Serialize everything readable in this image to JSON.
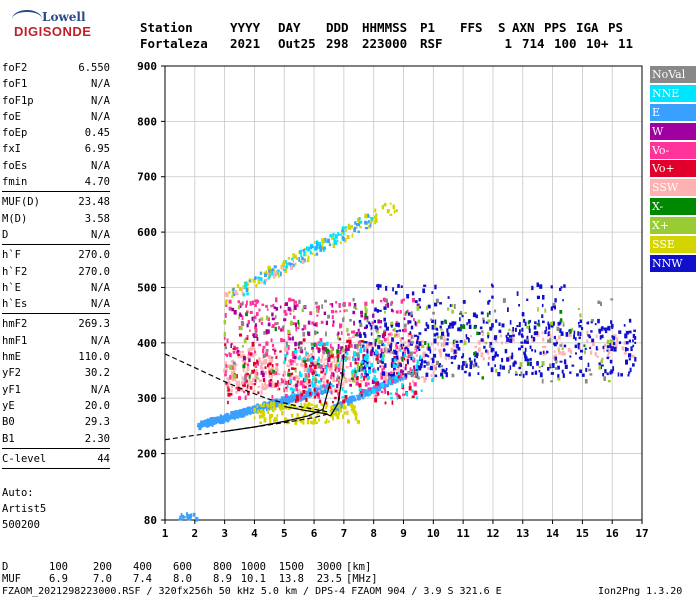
{
  "logo": {
    "line1": "Lowell",
    "line2": "DIGISONDE"
  },
  "header": {
    "labels": [
      "Station",
      "YYYY",
      "DAY",
      "DDD",
      "HHMMSS",
      "P1",
      "FFS",
      "S",
      "AXN",
      "PPS",
      "IGA",
      "PS"
    ],
    "values": [
      "Fortaleza",
      "2021",
      "Out25",
      "298",
      "223000",
      "RSF",
      "1",
      "714",
      "100",
      "10+",
      "11"
    ]
  },
  "params": {
    "group1": [
      {
        "k": "foF2",
        "v": "6.550"
      },
      {
        "k": "foF1",
        "v": "N/A"
      },
      {
        "k": "foF1p",
        "v": "N/A"
      },
      {
        "k": "foE",
        "v": "N/A"
      },
      {
        "k": "foEp",
        "v": "0.45"
      },
      {
        "k": "fxI",
        "v": "6.95"
      },
      {
        "k": "foEs",
        "v": "N/A"
      },
      {
        "k": "fmin",
        "v": "4.70"
      }
    ],
    "group2": [
      {
        "k": "MUF(D)",
        "v": "23.48"
      },
      {
        "k": "M(D)",
        "v": "3.58"
      },
      {
        "k": "D",
        "v": "N/A"
      }
    ],
    "group3": [
      {
        "k": "h`F",
        "v": "270.0"
      },
      {
        "k": "h`F2",
        "v": "270.0"
      },
      {
        "k": "h`E",
        "v": "N/A"
      },
      {
        "k": "h`Es",
        "v": "N/A"
      }
    ],
    "group4": [
      {
        "k": "hmF2",
        "v": "269.3"
      },
      {
        "k": "hmF1",
        "v": "N/A"
      },
      {
        "k": "hmE",
        "v": "110.0"
      },
      {
        "k": "yF2",
        "v": "30.2"
      },
      {
        "k": "yF1",
        "v": "N/A"
      },
      {
        "k": "yE",
        "v": "20.0"
      },
      {
        "k": "B0",
        "v": "29.3"
      },
      {
        "k": "B1",
        "v": "2.30"
      }
    ],
    "group5": [
      {
        "k": "C-level",
        "v": "44"
      }
    ]
  },
  "auto": {
    "line1": "Auto:",
    "line2": "Artist5",
    "line3": "500200"
  },
  "legend": [
    {
      "label": "NoVal",
      "color": "#888888"
    },
    {
      "label": "NNE",
      "color": "#00e5ff"
    },
    {
      "label": "E",
      "color": "#3aa0ff"
    },
    {
      "label": "W",
      "color": "#a000a0"
    },
    {
      "label": "Vo-",
      "color": "#ff3399"
    },
    {
      "label": "Vo+",
      "color": "#e0002a"
    },
    {
      "label": "SSW",
      "color": "#ffb0b0"
    },
    {
      "label": "X-",
      "color": "#008800"
    },
    {
      "label": "X+",
      "color": "#99cc33"
    },
    {
      "label": "SSE",
      "color": "#d4d400"
    },
    {
      "label": "NNW",
      "color": "#1010cc"
    }
  ],
  "bottom": {
    "d_label": "D",
    "d_values": [
      "100",
      "200",
      "400",
      "600",
      "800",
      "1000",
      "1500",
      "3000"
    ],
    "d_unit": "[km]",
    "muf_label": "MUF",
    "muf_values": [
      "6.9",
      "7.0",
      "7.4",
      "8.0",
      "8.9",
      "10.1",
      "13.8",
      "23.5"
    ],
    "muf_unit": "[MHz]"
  },
  "footer": {
    "text": "FZAOM_2021298223000.RSF / 320fx256h 50 kHz 5.0 km / DPS-4 FZAOM 904 / 3.9 S 321.6 E",
    "version": "Ion2Png 1.3.20"
  },
  "chart_data": {
    "type": "scatter",
    "xlabel": "",
    "ylabel": "",
    "xlim": [
      1,
      17
    ],
    "ylim": [
      80,
      900
    ],
    "x_ticks": [
      1,
      2,
      3,
      4,
      5,
      6,
      7,
      8,
      9,
      10,
      11,
      12,
      13,
      14,
      15,
      16,
      17
    ],
    "y_ticks": [
      80,
      200,
      300,
      400,
      500,
      600,
      700,
      800,
      900
    ],
    "grid": true,
    "legend_position": "right",
    "clusters": [
      {
        "name": "E",
        "xmin": 2.1,
        "xmax": 6.6,
        "ymin": 250,
        "ymax": 320,
        "n": 520,
        "tilt": 0.9
      },
      {
        "name": "E",
        "xmin": 6.6,
        "xmax": 9.0,
        "ymin": 280,
        "ymax": 340,
        "n": 180,
        "tilt": 0.6
      },
      {
        "name": "E",
        "xmin": 1.5,
        "xmax": 2.1,
        "ymin": 80,
        "ymax": 92,
        "n": 18,
        "tilt": 0
      },
      {
        "name": "SSE",
        "xmin": 4.0,
        "xmax": 7.5,
        "ymin": 255,
        "ymax": 290,
        "n": 150,
        "tilt": 0
      },
      {
        "name": "SSW",
        "xmin": 3.0,
        "xmax": 7.0,
        "ymin": 310,
        "ymax": 390,
        "n": 260,
        "tilt": 0
      },
      {
        "name": "SSW",
        "xmin": 7.0,
        "xmax": 10.5,
        "ymin": 330,
        "ymax": 420,
        "n": 120,
        "tilt": 0
      },
      {
        "name": "SSW",
        "xmin": 10.5,
        "xmax": 16.8,
        "ymin": 370,
        "ymax": 420,
        "n": 90,
        "tilt": 0
      },
      {
        "name": "Vo-",
        "xmin": 3.0,
        "xmax": 9.5,
        "ymin": 300,
        "ymax": 480,
        "n": 300,
        "tilt": 0
      },
      {
        "name": "Vo+",
        "xmin": 3.0,
        "xmax": 9.5,
        "ymin": 290,
        "ymax": 420,
        "n": 160,
        "tilt": 0
      },
      {
        "name": "W",
        "xmin": 3.2,
        "xmax": 9.5,
        "ymin": 320,
        "ymax": 470,
        "n": 120,
        "tilt": 0
      },
      {
        "name": "NNW",
        "xmin": 7.5,
        "xmax": 16.8,
        "ymin": 340,
        "ymax": 440,
        "n": 420,
        "tilt": 0
      },
      {
        "name": "NNW",
        "xmin": 8.0,
        "xmax": 14.5,
        "ymin": 430,
        "ymax": 510,
        "n": 80,
        "tilt": 0
      },
      {
        "name": "NNE",
        "xmin": 5.0,
        "xmax": 10.0,
        "ymin": 300,
        "ymax": 400,
        "n": 120,
        "tilt": 0
      },
      {
        "name": "X+",
        "xmin": 3.0,
        "xmax": 16.0,
        "ymin": 330,
        "ymax": 470,
        "n": 90,
        "tilt": 0
      },
      {
        "name": "X-",
        "xmin": 3.5,
        "xmax": 15.5,
        "ymin": 330,
        "ymax": 460,
        "n": 50,
        "tilt": 0
      },
      {
        "name": "NoVal",
        "xmin": 3.0,
        "xmax": 16.0,
        "ymin": 330,
        "ymax": 480,
        "n": 110,
        "tilt": 0
      },
      {
        "name": "SSE",
        "xmin": 3.0,
        "xmax": 8.8,
        "ymin": 480,
        "ymax": 650,
        "n": 110,
        "tilt": 1
      },
      {
        "name": "NNE",
        "xmin": 3.5,
        "xmax": 8.0,
        "ymin": 490,
        "ymax": 630,
        "n": 60,
        "tilt": 1
      },
      {
        "name": "E",
        "xmin": 3.2,
        "xmax": 8.0,
        "ymin": 485,
        "ymax": 625,
        "n": 50,
        "tilt": 1
      },
      {
        "name": "SSW",
        "xmin": 3.0,
        "xmax": 6.0,
        "ymin": 480,
        "ymax": 560,
        "n": 20,
        "tilt": 1
      }
    ],
    "curves": [
      {
        "name": "o-trace",
        "style": "solid",
        "points": [
          [
            3.0,
            240
          ],
          [
            4.0,
            248
          ],
          [
            5.0,
            258
          ],
          [
            5.8,
            268
          ],
          [
            6.3,
            280
          ],
          [
            6.55,
            330
          ]
        ]
      },
      {
        "name": "o-trace-lower",
        "style": "solid",
        "points": [
          [
            5.0,
            285
          ],
          [
            5.5,
            280
          ],
          [
            6.0,
            275
          ],
          [
            6.4,
            272
          ],
          [
            6.55,
            268
          ]
        ]
      },
      {
        "name": "x-trace",
        "style": "solid",
        "points": [
          [
            6.55,
            268
          ],
          [
            6.8,
            290
          ],
          [
            6.95,
            340
          ],
          [
            7.0,
            380
          ]
        ]
      },
      {
        "name": "profile-lower",
        "style": "dashed",
        "points": [
          [
            1.0,
            225
          ],
          [
            2.0,
            233
          ],
          [
            3.0,
            240
          ],
          [
            4.0,
            248
          ],
          [
            5.0,
            256
          ],
          [
            6.0,
            265
          ],
          [
            6.5,
            272
          ]
        ]
      },
      {
        "name": "profile-upper",
        "style": "dashed",
        "points": [
          [
            1.0,
            380
          ],
          [
            2.0,
            355
          ],
          [
            3.0,
            330
          ],
          [
            3.8,
            312
          ],
          [
            4.5,
            298
          ],
          [
            5.5,
            285
          ],
          [
            6.5,
            275
          ]
        ]
      }
    ]
  }
}
